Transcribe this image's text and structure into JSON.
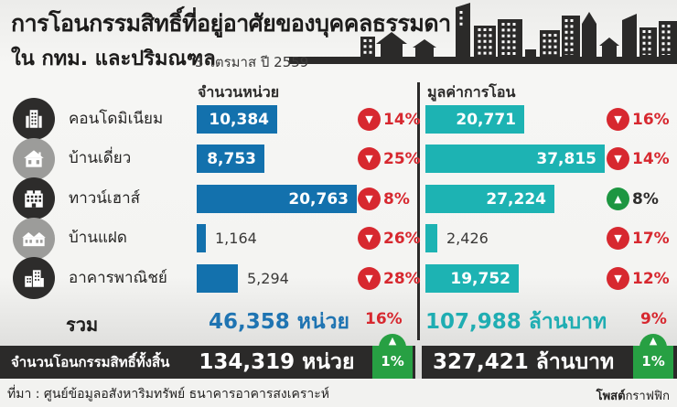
{
  "header": {
    "title_line1": "การโอนกรรมสิทธิ์ที่อยู่อาศัยของบุคคลธรรมดา",
    "title_line2": "ใน กทม. และปริมณฑล",
    "period": "3 ไตรมาส ปี 2559"
  },
  "columns": {
    "units": "จำนวนหน่วย",
    "value": "มูลค่าการโอน"
  },
  "rows": [
    {
      "label": "คอนโดมิเนียม",
      "icon": "condominium-icon",
      "units": {
        "display": "10,384",
        "pct": "14%",
        "dir": "down"
      },
      "value": {
        "display": "20,771",
        "pct": "16%",
        "dir": "down"
      }
    },
    {
      "label": "บ้านเดี่ยว",
      "icon": "detached-house-icon",
      "units": {
        "display": "8,753",
        "pct": "25%",
        "dir": "down"
      },
      "value": {
        "display": "37,815",
        "pct": "14%",
        "dir": "down"
      }
    },
    {
      "label": "ทาวน์เฮาส์",
      "icon": "townhouse-icon",
      "units": {
        "display": "20,763",
        "pct": "8%",
        "dir": "down"
      },
      "value": {
        "display": "27,224",
        "pct": "8%",
        "dir": "up"
      }
    },
    {
      "label": "บ้านแฝด",
      "icon": "twin-house-icon",
      "units": {
        "display": "1,164",
        "pct": "26%",
        "dir": "down"
      },
      "value": {
        "display": "2,426",
        "pct": "17%",
        "dir": "down"
      }
    },
    {
      "label": "อาคารพาณิชย์",
      "icon": "commercial-building-icon",
      "units": {
        "display": "5,294",
        "pct": "28%",
        "dir": "down"
      },
      "value": {
        "display": "19,752",
        "pct": "12%",
        "dir": "down"
      }
    }
  ],
  "totals": {
    "label": "รวม",
    "units": {
      "display": "46,358 หน่วย",
      "pct": "16%",
      "dir": "down"
    },
    "value": {
      "display": "107,988 ล้านบาท",
      "pct": "9%",
      "dir": "down"
    }
  },
  "grand_total": {
    "label": "จำนวนโอนกรรมสิทธิ์ทั้งสิ้น",
    "units": {
      "display": "134,319 หน่วย",
      "pct": "1%",
      "dir": "up"
    },
    "value": {
      "display": "327,421 ล้านบาท",
      "pct": "1%",
      "dir": "up"
    }
  },
  "footer": {
    "source": "ที่มา : ศูนย์ข้อมูลอสังหาริมทรัพย์ ธนาคารอาคารสงเคราะห์",
    "brand_bold": "โพสต์",
    "brand_regular": "กราฟฟิก"
  },
  "colors": {
    "units_bar": "#1371ad",
    "value_bar": "#1db3b3",
    "down_red": "#d7282f",
    "up_green": "#1d9641",
    "badge_green": "#27a043",
    "dark": "#2b2a29"
  },
  "chart_data": {
    "type": "bar",
    "title": "การโอนกรรมสิทธิ์ที่อยู่อาศัยของบุคคลธรรมดา ใน กทม. และปริมณฑล 3 ไตรมาส ปี 2559",
    "categories": [
      "คอนโดมิเนียม",
      "บ้านเดี่ยว",
      "ทาวน์เฮาส์",
      "บ้านแฝด",
      "อาคารพาณิชย์"
    ],
    "series": [
      {
        "name": "จำนวนหน่วย",
        "unit": "หน่วย",
        "values": [
          10384,
          8753,
          20763,
          1164,
          5294
        ],
        "pct_change": [
          -14,
          -25,
          -8,
          -26,
          -28
        ],
        "total": 46358,
        "total_pct_change": -16
      },
      {
        "name": "มูลค่าการโอน",
        "unit": "ล้านบาท",
        "values": [
          20771,
          37815,
          27224,
          2426,
          19752
        ],
        "pct_change": [
          -16,
          -14,
          8,
          -17,
          -12
        ],
        "total": 107988,
        "total_pct_change": -9
      }
    ],
    "grand_total_units": {
      "value": 134319,
      "unit": "หน่วย",
      "pct_change": 1
    },
    "grand_total_value": {
      "value": 327421,
      "unit": "ล้านบาท",
      "pct_change": 1
    },
    "legend_position": "none",
    "grid": false
  }
}
